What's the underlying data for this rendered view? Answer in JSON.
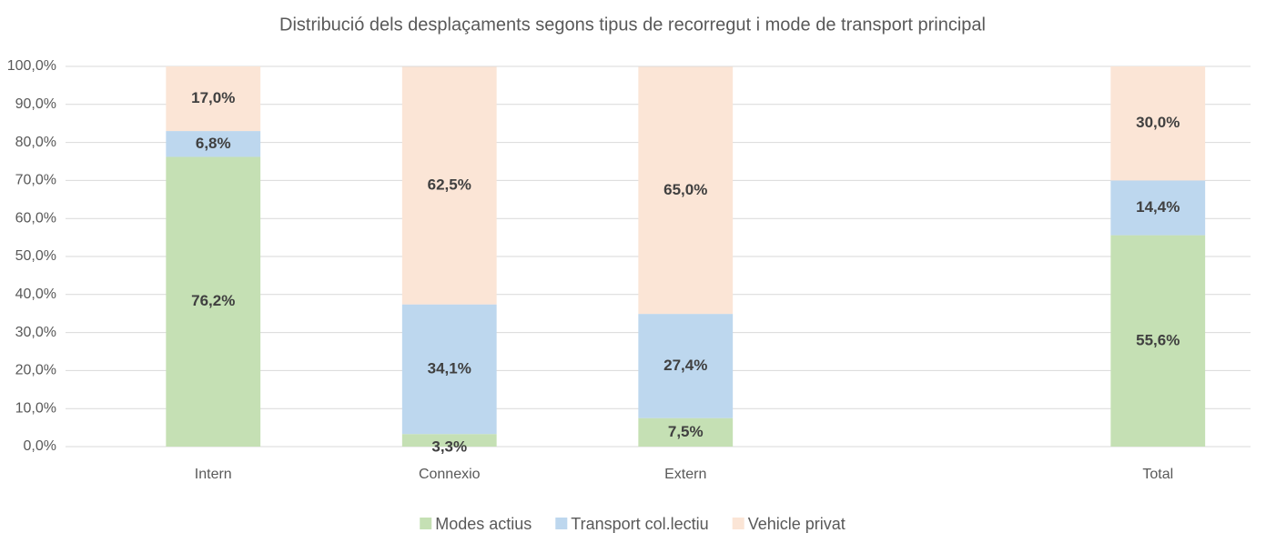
{
  "chart_data": {
    "type": "stacked_bar",
    "title": "Distribució dels desplaçaments segons tipus de recorregut i mode de transport principal",
    "categories": [
      "Intern",
      "Connexio",
      "Extern",
      null,
      "Total"
    ],
    "series": [
      {
        "name": "Modes actius",
        "color": "#c5e0b4",
        "values": [
          76.2,
          3.3,
          7.5,
          null,
          55.6
        ],
        "value_labels": [
          "76,2%",
          "3,3%",
          "7,5%",
          null,
          "55,6%"
        ]
      },
      {
        "name": "Transport col.lectiu",
        "color": "#bdd7ee",
        "values": [
          6.8,
          34.1,
          27.4,
          null,
          14.4
        ],
        "value_labels": [
          "6,8%",
          "34,1%",
          "27,4%",
          null,
          "14,4%"
        ]
      },
      {
        "name": "Vehicle privat",
        "color": "#fbe5d6",
        "values": [
          17.0,
          62.5,
          65.0,
          null,
          30.0
        ],
        "value_labels": [
          "17,0%",
          "62,5%",
          "65,0%",
          null,
          "30,0%"
        ]
      }
    ],
    "ylim": [
      0,
      100
    ],
    "yticks": [
      {
        "value": 0,
        "label": "0,0%"
      },
      {
        "value": 10,
        "label": "10,0%"
      },
      {
        "value": 20,
        "label": "20,0%"
      },
      {
        "value": 30,
        "label": "30,0%"
      },
      {
        "value": 40,
        "label": "40,0%"
      },
      {
        "value": 50,
        "label": "50,0%"
      },
      {
        "value": 60,
        "label": "60,0%"
      },
      {
        "value": 70,
        "label": "70,0%"
      },
      {
        "value": 80,
        "label": "80,0%"
      },
      {
        "value": 90,
        "label": "90,0%"
      },
      {
        "value": 100,
        "label": "100,0%"
      }
    ],
    "grid": true,
    "legend": "bottom"
  }
}
